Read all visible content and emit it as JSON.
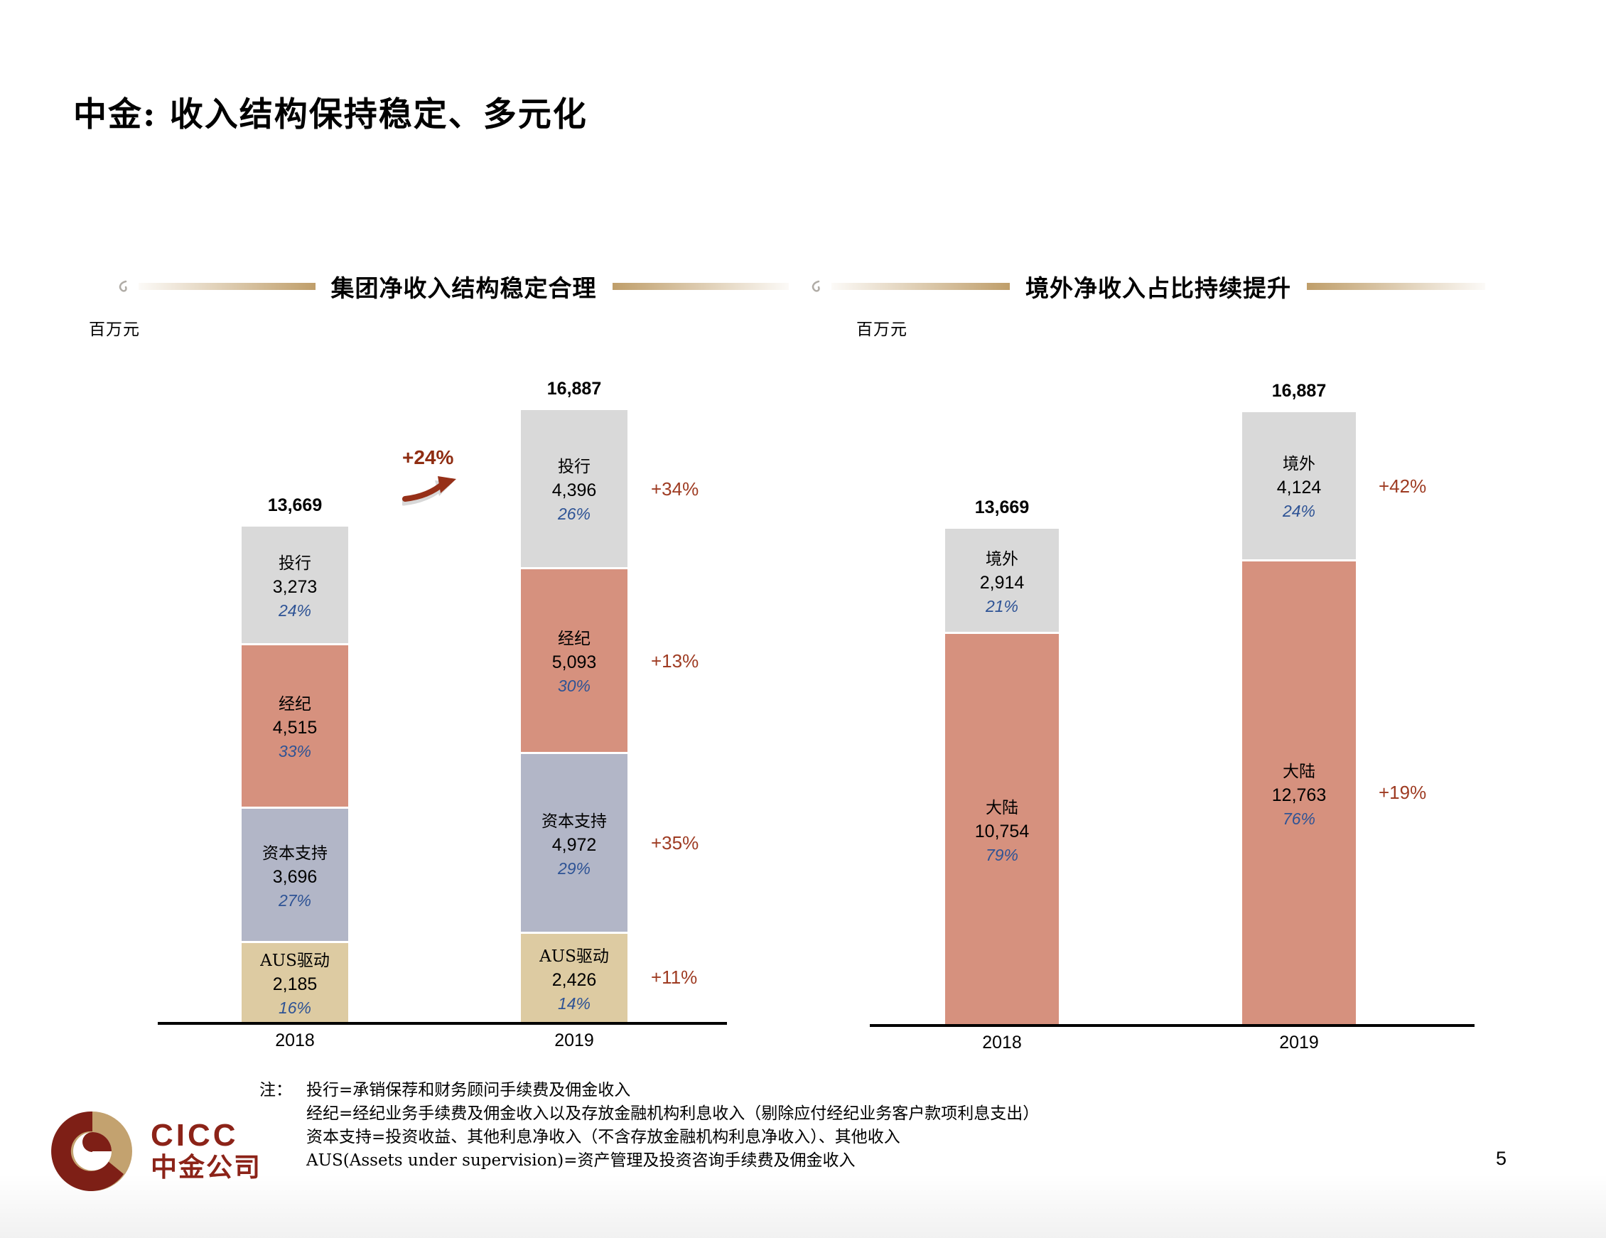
{
  "page": {
    "title": "中金: 收入结构保持稳定、多元化",
    "page_number": "5",
    "note_label": "注：",
    "footnotes": [
      "投行=承销保荐和财务顾问手续费及佣金收入",
      "经纪=经纪业务手续费及佣金收入以及存放金融机构利息收入（剔除应付经纪业务客户款项利息支出）",
      "资本支持=投资收益、其他利息净收入（不含存放金融机构利息净收入）、其他收入",
      "AUS(Assets under supervision)=资产管理及投资咨询手续费及佣金收入"
    ]
  },
  "logo": {
    "brand": "CICC",
    "brand_cn": "中金公司",
    "maroon": "#8c2318",
    "gold": "#c3a26f"
  },
  "colors": {
    "delta": "#9e3b22",
    "total_growth": "#8f2d12",
    "share": "#2e5395",
    "gold_line": "#bf9e6a",
    "axis": "#000000"
  },
  "chart_data": [
    {
      "type": "bar",
      "stacked": true,
      "stack_order": "top-to-bottom",
      "title": "集团净收入结构稳定合理",
      "unit_label": "百万元",
      "categories": [
        "2018",
        "2019"
      ],
      "totals": [
        13669,
        16887
      ],
      "totals_display": [
        "13,669",
        "16,887"
      ],
      "total_growth": "+24%",
      "ylim": [
        0,
        16887
      ],
      "grid": false,
      "legend": "none",
      "series": [
        {
          "name": "投行",
          "values": [
            3273,
            4396
          ],
          "values_display": [
            "3,273",
            "4,396"
          ],
          "shares": [
            "24%",
            "26%"
          ],
          "growth": "+34%",
          "color": "#d9d9d9"
        },
        {
          "name": "经纪",
          "values": [
            4515,
            5093
          ],
          "values_display": [
            "4,515",
            "5,093"
          ],
          "shares": [
            "33%",
            "30%"
          ],
          "growth": "+13%",
          "color": "#d6917e"
        },
        {
          "name": "资本支持",
          "values": [
            3696,
            4972
          ],
          "values_display": [
            "3,696",
            "4,972"
          ],
          "shares": [
            "27%",
            "29%"
          ],
          "growth": "+35%",
          "color": "#b2b6c7"
        },
        {
          "name": "AUS驱动",
          "values": [
            2185,
            2426
          ],
          "values_display": [
            "2,185",
            "2,426"
          ],
          "shares": [
            "16%",
            "14%"
          ],
          "growth": "+11%",
          "color": "#ddcba2"
        }
      ]
    },
    {
      "type": "bar",
      "stacked": true,
      "stack_order": "top-to-bottom",
      "title": "境外净收入占比持续提升",
      "unit_label": "百万元",
      "categories": [
        "2018",
        "2019"
      ],
      "totals": [
        13669,
        16887
      ],
      "totals_display": [
        "13,669",
        "16,887"
      ],
      "ylim": [
        0,
        16887
      ],
      "grid": false,
      "legend": "none",
      "series": [
        {
          "name": "境外",
          "values": [
            2914,
            4124
          ],
          "values_display": [
            "2,914",
            "4,124"
          ],
          "shares": [
            "21%",
            "24%"
          ],
          "growth": "+42%",
          "color": "#d9d9d9"
        },
        {
          "name": "大陆",
          "values": [
            10754,
            12763
          ],
          "values_display": [
            "10,754",
            "12,763"
          ],
          "shares": [
            "79%",
            "76%"
          ],
          "growth": "+19%",
          "color": "#d6917e"
        }
      ]
    }
  ]
}
